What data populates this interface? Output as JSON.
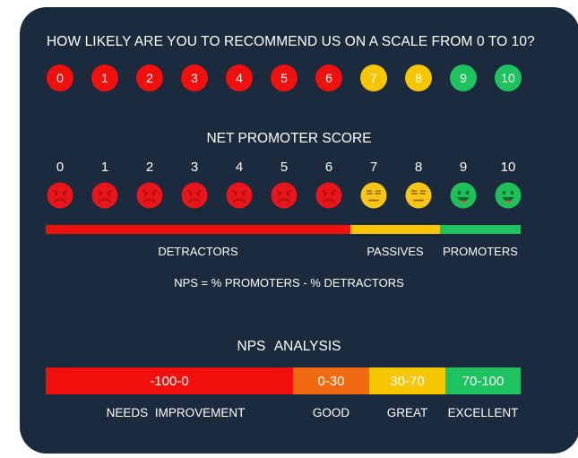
{
  "question": "HOW LIKELY ARE YOU TO RECOMMEND US ON A SCALE FROM 0 TO 10?",
  "scale": [
    {
      "label": "0",
      "color": "#f2100f"
    },
    {
      "label": "1",
      "color": "#f2100f"
    },
    {
      "label": "2",
      "color": "#f2100f"
    },
    {
      "label": "3",
      "color": "#f2100f"
    },
    {
      "label": "4",
      "color": "#f2100f"
    },
    {
      "label": "5",
      "color": "#f2100f"
    },
    {
      "label": "6",
      "color": "#f2100f"
    },
    {
      "label": "7",
      "color": "#f7c600"
    },
    {
      "label": "8",
      "color": "#f7c600"
    },
    {
      "label": "9",
      "color": "#1ec25e"
    },
    {
      "label": "10",
      "color": "#1ec25e"
    }
  ],
  "nps_title": "NET PROMOTER SCORE",
  "faces": [
    "sad",
    "sad",
    "sad",
    "sad",
    "sad",
    "sad",
    "sad",
    "neutral",
    "neutral",
    "happy",
    "happy"
  ],
  "segments": {
    "detractors": "DETRACTORS",
    "passives": "PASSIVES",
    "promoters": "PROMOTERS"
  },
  "formula": "NPS = % PROMOTERS - % DETRACTORS",
  "analysis_title": "NPS  ANALYSIS",
  "ranges": [
    {
      "range": "-100-0",
      "label": "NEEDS  IMPROVEMENT",
      "color": "#f2100f"
    },
    {
      "range": "0-30",
      "label": "GOOD",
      "color": "#f26a10"
    },
    {
      "range": "30-70",
      "label": "GREAT",
      "color": "#f7c600"
    },
    {
      "range": "70-100",
      "label": "EXCELLENT",
      "color": "#1ec25e"
    }
  ],
  "colors": {
    "background": "#1b2a3d",
    "red": "#f2100f",
    "yellow": "#f7c600",
    "green": "#1ec25e",
    "orange": "#f26a10"
  }
}
